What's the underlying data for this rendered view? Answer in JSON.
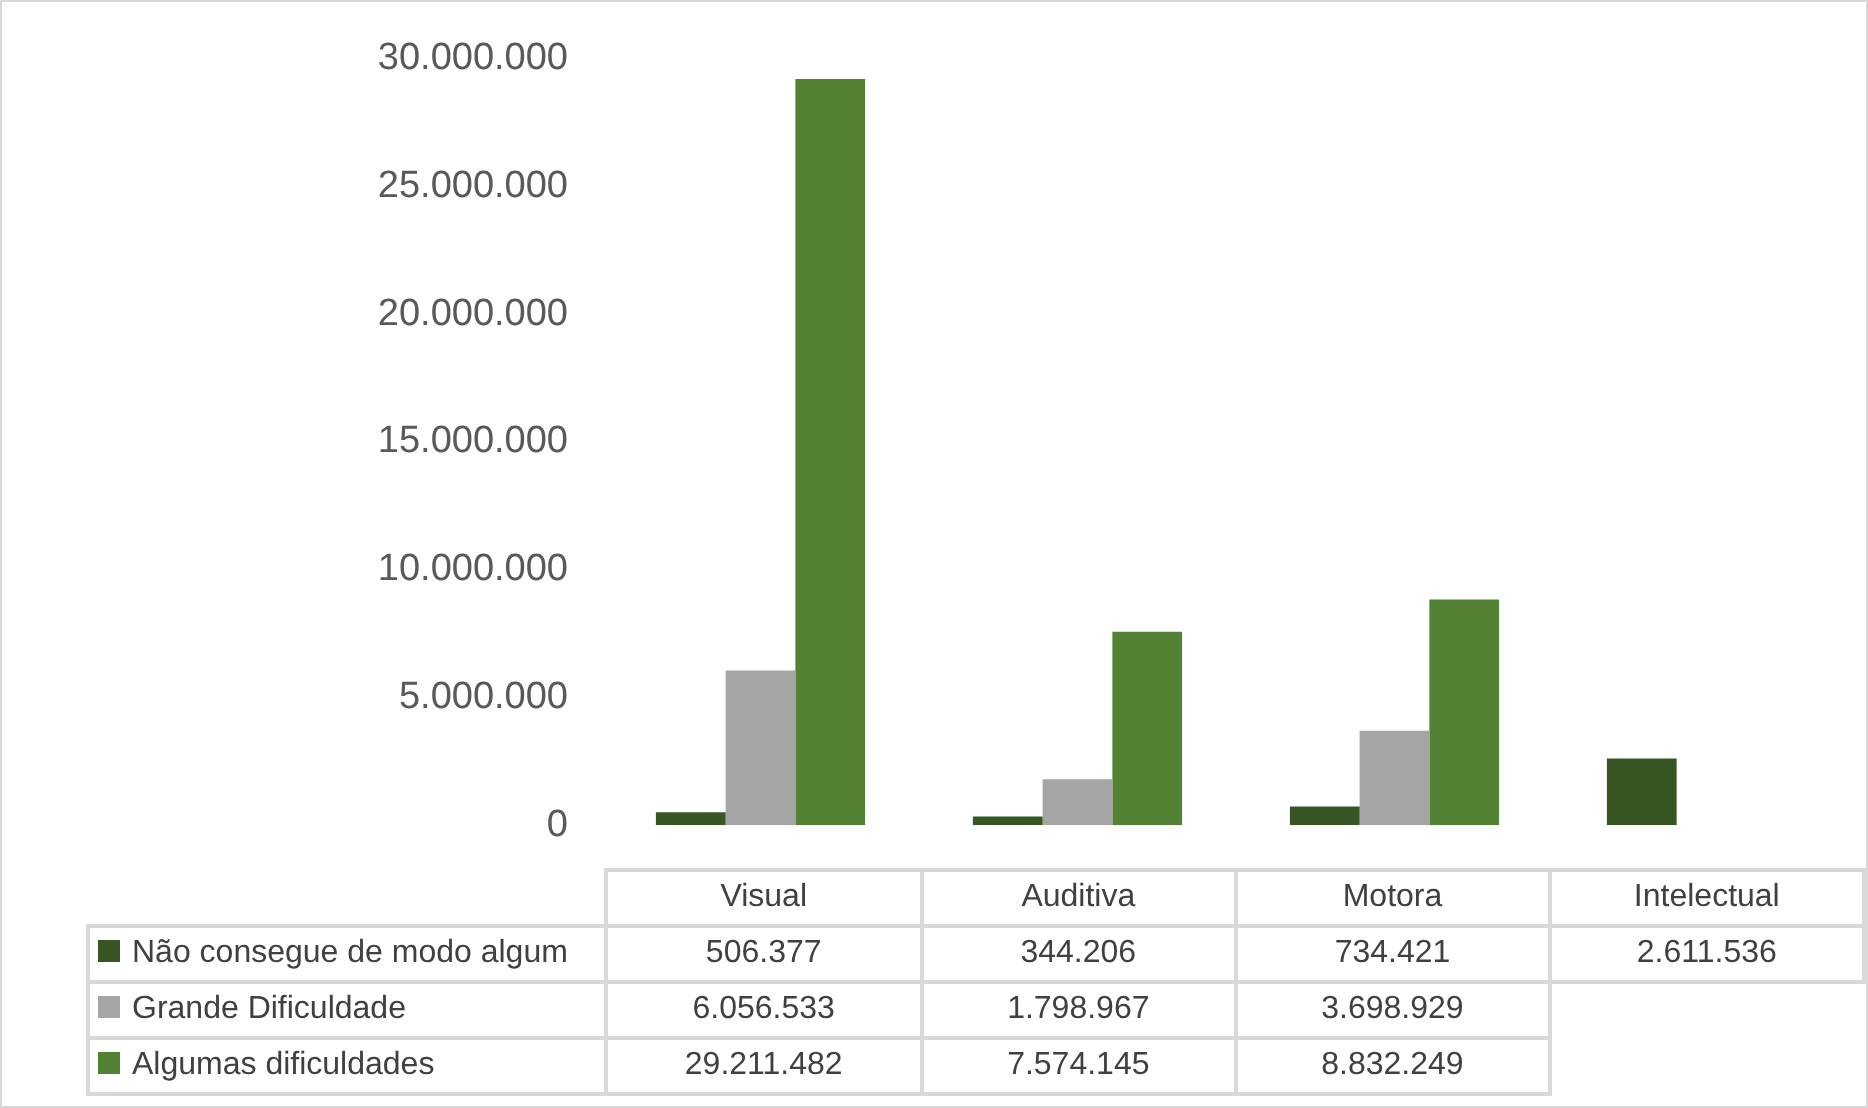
{
  "chart_data": {
    "type": "bar",
    "categories": [
      "Visual",
      "Auditiva",
      "Motora",
      "Intelectual"
    ],
    "series": [
      {
        "name": "Não consegue de modo algum",
        "color": "#375623",
        "values": [
          506377,
          344206,
          734421,
          2611536
        ],
        "value_labels": [
          "506.377",
          "344.206",
          "734.421",
          "2.611.536"
        ]
      },
      {
        "name": "Grande Dificuldade",
        "color": "#a5a5a5",
        "values": [
          6056533,
          1798967,
          3698929,
          null
        ],
        "value_labels": [
          "6.056.533",
          "1.798.967",
          "3.698.929",
          null
        ]
      },
      {
        "name": "Algumas dificuldades",
        "color": "#548235",
        "values": [
          29211482,
          7574145,
          8832249,
          null
        ],
        "value_labels": [
          "29.211.482",
          "7.574.145",
          "8.832.249",
          null
        ]
      }
    ],
    "ylim": [
      0,
      30000000
    ],
    "yticks": [
      {
        "value": 0,
        "label": "0"
      },
      {
        "value": 5000000,
        "label": "5.000.000"
      },
      {
        "value": 10000000,
        "label": "10.000.000"
      },
      {
        "value": 15000000,
        "label": "15.000.000"
      },
      {
        "value": 20000000,
        "label": "20.000.000"
      },
      {
        "value": 25000000,
        "label": "25.000.000"
      },
      {
        "value": 30000000,
        "label": "30.000.000"
      }
    ],
    "grid": false,
    "legend": "bottom"
  }
}
